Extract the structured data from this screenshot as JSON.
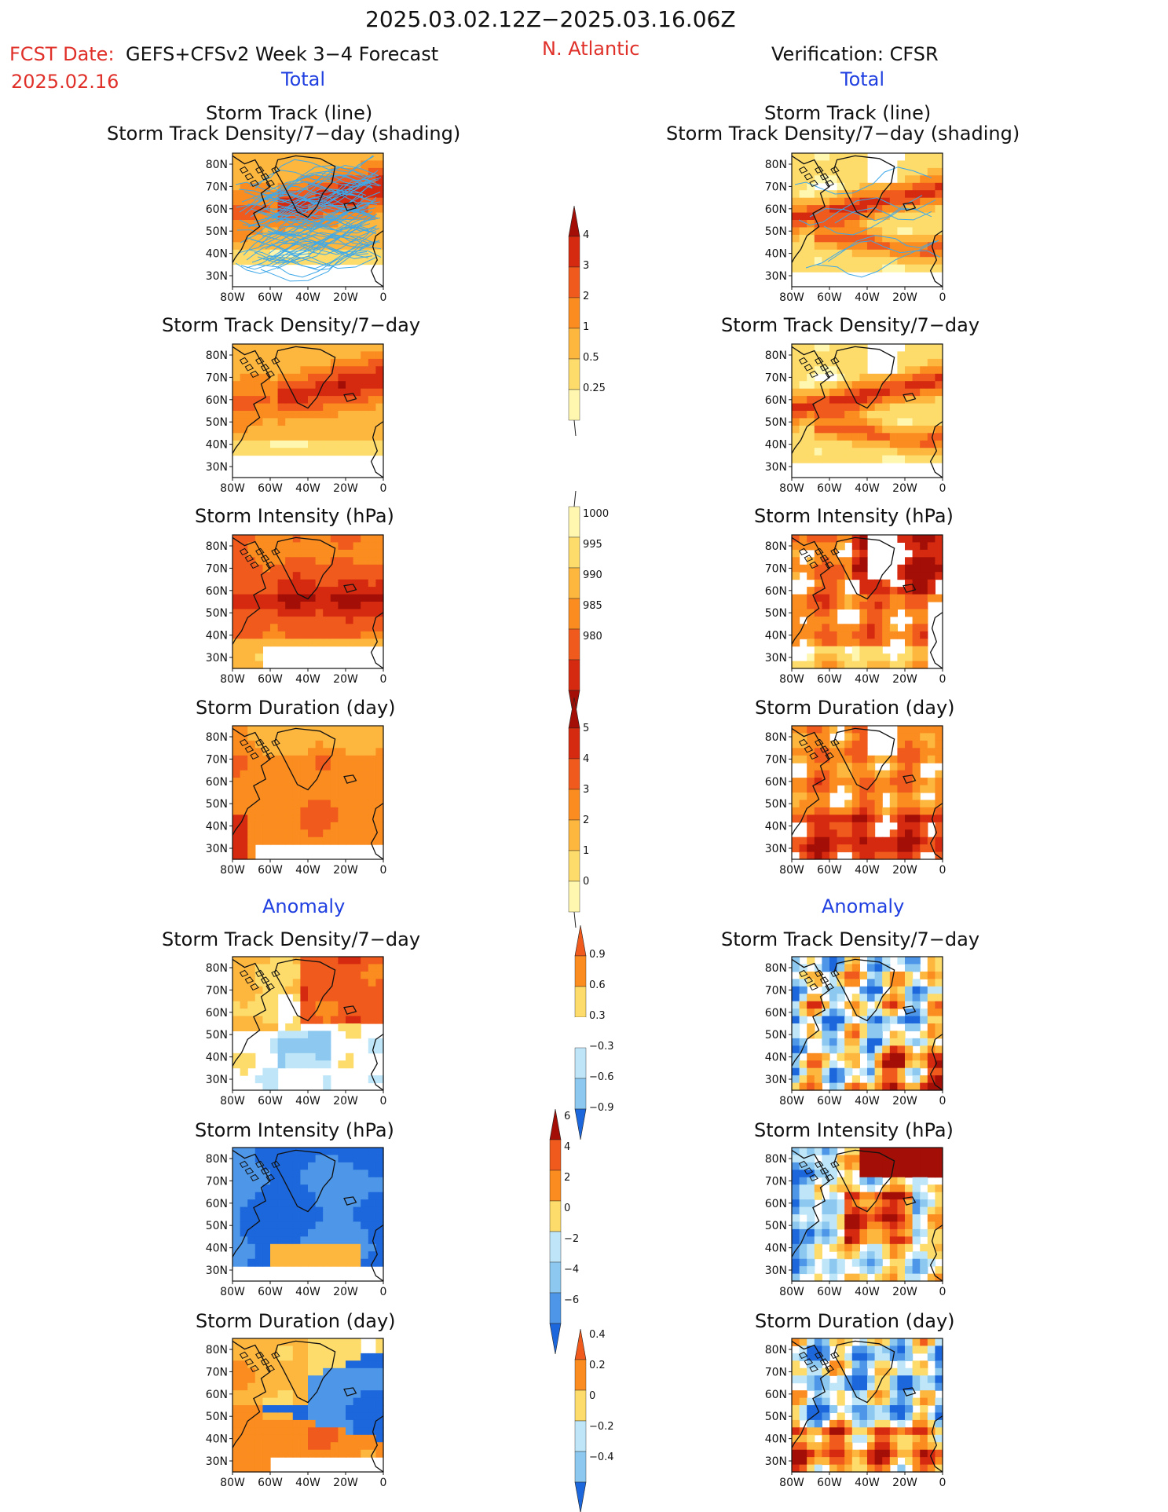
{
  "header": {
    "date_range": "2025.03.02.12Z−2025.03.16.06Z",
    "fcst_label": "FCST Date:",
    "fcst_model": "GEFS+CFSv2 Week 3−4 Forecast",
    "fcst_date": "2025.02.16",
    "region": "N. Atlantic",
    "verification": "Verification: CFSR"
  },
  "sections": {
    "total_left": "Total",
    "total_right": "Total",
    "anomaly_left": "Anomaly",
    "anomaly_right": "Anomaly"
  },
  "titles": {
    "track_line": "Storm Track (line)",
    "track_shading": "Storm Track Density/7−day (shading)",
    "density": "Storm Track Density/7−day",
    "intensity": "Storm Intensity (hPa)",
    "duration": "Storm Duration (day)"
  },
  "axes": {
    "lat_labels": [
      "80N",
      "70N",
      "60N",
      "50N",
      "40N",
      "30N"
    ],
    "lon_labels": [
      "80W",
      "60W",
      "40W",
      "20W",
      "0"
    ]
  },
  "colorbars": {
    "density": [
      "4",
      "3",
      "2",
      "1",
      "0.5",
      "0.25"
    ],
    "intensity": [
      "1000",
      "995",
      "990",
      "985",
      "980"
    ],
    "duration": [
      "5",
      "4",
      "3",
      "2",
      "1",
      "0"
    ],
    "density_anom": [
      "0.9",
      "0.6",
      "0.3",
      "−0.3",
      "−0.6",
      "−0.9"
    ],
    "intensity_anom": [
      "6",
      "4",
      "2",
      "0",
      "−2",
      "−4",
      "−6"
    ],
    "duration_anom": [
      "0.4",
      "0.2",
      "0",
      "−0.2",
      "−0.4"
    ]
  },
  "colors": {
    "pale_yellow": "#fff7b0",
    "yellow": "#fddc6b",
    "light_orange": "#fdb63e",
    "orange": "#fb8c1f",
    "red_orange": "#f05a1c",
    "red": "#d52a10",
    "dark_red": "#a30f06",
    "light_blue": "#bfe6f8",
    "sky_blue": "#8cc8f0",
    "mid_blue": "#4e97e8",
    "blue": "#1d67dc",
    "track_line": "#3fa8e8",
    "coast": "#111111"
  }
}
